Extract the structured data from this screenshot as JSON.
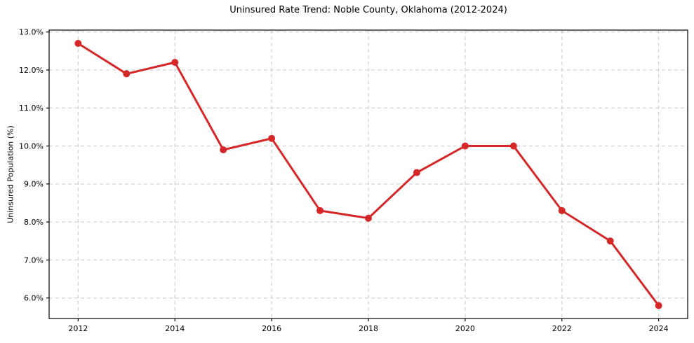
{
  "chart_data": {
    "type": "line",
    "title": "Uninsured Rate Trend: Noble County, Oklahoma (2012-2024)",
    "xlabel": "",
    "ylabel": "Uninsured Population (%)",
    "x": [
      2012,
      2013,
      2014,
      2015,
      2016,
      2017,
      2018,
      2019,
      2020,
      2021,
      2022,
      2023,
      2024
    ],
    "values": [
      12.7,
      11.9,
      12.2,
      9.9,
      10.2,
      8.3,
      8.1,
      9.3,
      10.0,
      10.0,
      8.3,
      7.5,
      5.8
    ],
    "series_name": "Uninsured Rate",
    "xtick_values": [
      2012,
      2014,
      2016,
      2018,
      2020,
      2022,
      2024
    ],
    "xtick_labels": [
      "2012",
      "2014",
      "2016",
      "2018",
      "2020",
      "2022",
      "2024"
    ],
    "ytick_values": [
      6,
      7,
      8,
      9,
      10,
      11,
      12,
      13
    ],
    "ytick_labels": [
      "6.0%",
      "7.0%",
      "8.0%",
      "9.0%",
      "10.0%",
      "11.0%",
      "12.0%",
      "13.0%"
    ],
    "xlim": [
      2011.4,
      2024.6
    ],
    "ylim": [
      5.46,
      13.05
    ],
    "grid": true,
    "grid_style": "dashed",
    "legend": "none",
    "line_color": "#d62728",
    "marker": "circle",
    "grid_color": "#c9c9c9",
    "spine_color": "#000000"
  }
}
